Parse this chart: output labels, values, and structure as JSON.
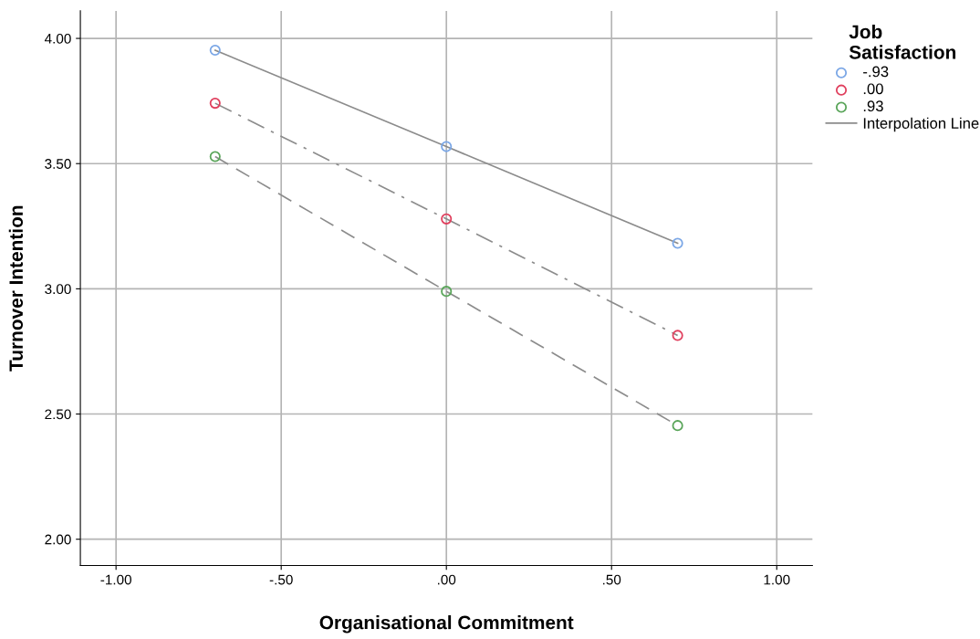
{
  "chart_data": {
    "type": "scatter",
    "xlabel": "Organisational Commitment",
    "ylabel": "Turnover Intention",
    "legend_title": "Job\nSatisfaction",
    "xlim": [
      -1.108,
      1.108
    ],
    "ylim": [
      1.895,
      4.11
    ],
    "xticks": [
      {
        "value": -1.0,
        "label": "-1.00"
      },
      {
        "value": -0.5,
        "label": "-.50"
      },
      {
        "value": 0,
        "label": ".00"
      },
      {
        "value": 0.5,
        "label": ".50"
      },
      {
        "value": 1.0,
        "label": "1.00"
      }
    ],
    "yticks": [
      {
        "value": 2.0,
        "label": "2.00"
      },
      {
        "value": 2.5,
        "label": "2.50"
      },
      {
        "value": 3.0,
        "label": "3.00"
      },
      {
        "value": 3.5,
        "label": "3.50"
      },
      {
        "value": 4.0,
        "label": "4.00"
      }
    ],
    "grid": true,
    "legend": "top right",
    "series": [
      {
        "marker": "circle",
        "name": "-.93",
        "color": "#7ba7e6",
        "x": [
          -0.7,
          0,
          0.7
        ],
        "values": [
          3.953,
          3.568,
          3.182
        ]
      },
      {
        "marker": "circle",
        "name": ".00",
        "color": "#e0405e",
        "x": [
          -0.7,
          0,
          0.7
        ],
        "values": [
          3.741,
          3.279,
          2.814
        ]
      },
      {
        "marker": "circle",
        "name": ".93",
        "color": "#5aa55a",
        "x": [
          -0.7,
          0,
          0.7
        ],
        "values": [
          3.528,
          2.99,
          2.454
        ]
      },
      {
        "type": "line",
        "name": "Interpolation Line",
        "color": "#8c8c8c",
        "line_style": "solid",
        "marker": "none",
        "x": [
          -0.7,
          0,
          0.7
        ],
        "values": [
          3.953,
          3.568,
          3.182
        ]
      },
      {
        "type": "line",
        "color": "#8c8c8c",
        "line_style": "dashdot",
        "marker": "none",
        "x": [
          -0.7,
          0,
          0.7
        ],
        "values": [
          3.741,
          3.279,
          2.814
        ]
      },
      {
        "type": "line",
        "color": "#8c8c8c",
        "line_style": "dashed",
        "marker": "none",
        "x": [
          -0.7,
          0,
          0.7
        ],
        "values": [
          3.528,
          2.99,
          2.454
        ]
      }
    ]
  }
}
